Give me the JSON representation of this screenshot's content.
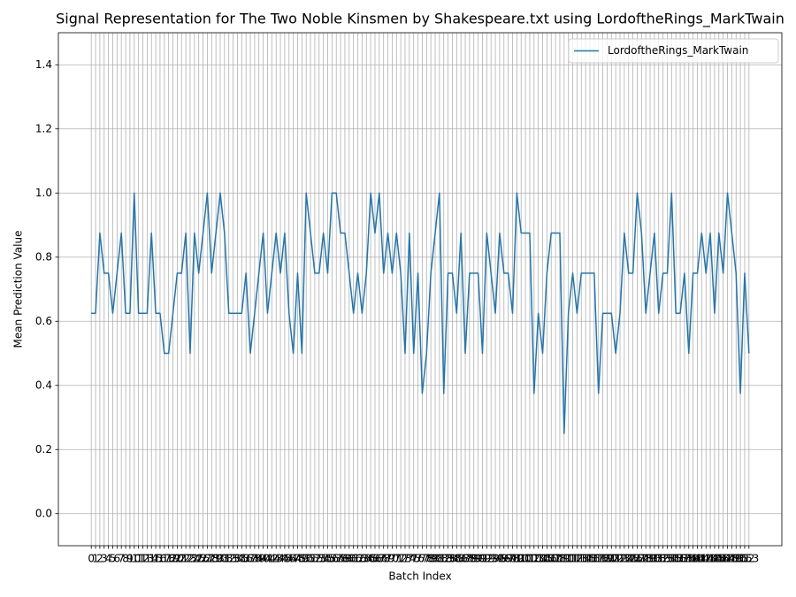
{
  "chart_data": {
    "type": "line",
    "title": "Signal Representation for The Two Noble Kinsmen by Shakespeare.txt using LordoftheRings_MarkTwain",
    "x_label": "Batch Index",
    "y_label": "Mean Prediction Value",
    "x": [
      0,
      1,
      2,
      3,
      4,
      5,
      6,
      7,
      8,
      9,
      10,
      11,
      12,
      13,
      14,
      15,
      16,
      17,
      18,
      19,
      20,
      21,
      22,
      23,
      24,
      25,
      26,
      27,
      28,
      29,
      30,
      31,
      32,
      33,
      34,
      35,
      36,
      37,
      38,
      39,
      40,
      41,
      42,
      43,
      44,
      45,
      46,
      47,
      48,
      49,
      50,
      51,
      52,
      53,
      54,
      55,
      56,
      57,
      58,
      59,
      60,
      61,
      62,
      63,
      64,
      65,
      66,
      67,
      68,
      69,
      70,
      71,
      72,
      73,
      74,
      75,
      76,
      77,
      78,
      79,
      80,
      81,
      82,
      83,
      84,
      85,
      86,
      87,
      88,
      89,
      90,
      91,
      92,
      93,
      94,
      95,
      96,
      97,
      98,
      99,
      100,
      101,
      102,
      103,
      104,
      105,
      106,
      107,
      108,
      109,
      110,
      111,
      112,
      113,
      114,
      115,
      116,
      117,
      118,
      119,
      120,
      121,
      122,
      123,
      124,
      125,
      126,
      127,
      128,
      129,
      130,
      131,
      132,
      133,
      134,
      135,
      136,
      137,
      138,
      139,
      140,
      141,
      142,
      143,
      144,
      145,
      146,
      147,
      148,
      149,
      150,
      151,
      152,
      153
    ],
    "series": [
      {
        "name": "LordoftheRings_MarkTwain",
        "color": "#1f77b4",
        "values": [
          0.625,
          0.625,
          0.875,
          0.75,
          0.75,
          0.625,
          0.75,
          0.875,
          0.625,
          0.625,
          1.0,
          0.625,
          0.625,
          0.625,
          0.875,
          0.625,
          0.625,
          0.5,
          0.5,
          0.625,
          0.75,
          0.75,
          0.875,
          0.5,
          0.875,
          0.75,
          0.875,
          1.0,
          0.75,
          0.875,
          1.0,
          0.875,
          0.625,
          0.625,
          0.625,
          0.625,
          0.75,
          0.5,
          0.625,
          0.75,
          0.875,
          0.625,
          0.75,
          0.875,
          0.75,
          0.875,
          0.625,
          0.5,
          0.75,
          0.5,
          1.0,
          0.875,
          0.75,
          0.75,
          0.875,
          0.75,
          1.0,
          1.0,
          0.875,
          0.875,
          0.75,
          0.625,
          0.75,
          0.625,
          0.75,
          1.0,
          0.875,
          1.0,
          0.75,
          0.875,
          0.75,
          0.875,
          0.75,
          0.5,
          0.875,
          0.5,
          0.75,
          0.375,
          0.5,
          0.75,
          0.875,
          1.0,
          0.375,
          0.75,
          0.75,
          0.625,
          0.875,
          0.5,
          0.75,
          0.75,
          0.75,
          0.5,
          0.875,
          0.75,
          0.625,
          0.875,
          0.75,
          0.75,
          0.625,
          1.0,
          0.875,
          0.875,
          0.875,
          0.375,
          0.625,
          0.5,
          0.75,
          0.875,
          0.875,
          0.875,
          0.25,
          0.625,
          0.75,
          0.625,
          0.75,
          0.75,
          0.75,
          0.75,
          0.375,
          0.625,
          0.625,
          0.625,
          0.5,
          0.625,
          0.875,
          0.75,
          0.75,
          1.0,
          0.875,
          0.625,
          0.75,
          0.875,
          0.625,
          0.75,
          0.75,
          1.0,
          0.625,
          0.625,
          0.75,
          0.5,
          0.75,
          0.75,
          0.875,
          0.75,
          0.875,
          0.625,
          0.875,
          0.75,
          1.0,
          0.875,
          0.75,
          0.375,
          0.75,
          0.5
        ]
      }
    ],
    "xlim": [
      -7.65,
      160.65
    ],
    "xticks": [
      0,
      1,
      2,
      3,
      4,
      5,
      6,
      7,
      8,
      9,
      10,
      11,
      12,
      13,
      14,
      15,
      16,
      17,
      18,
      19,
      20,
      21,
      22,
      23,
      24,
      25,
      26,
      27,
      28,
      29,
      30,
      31,
      32,
      33,
      34,
      35,
      36,
      37,
      38,
      39,
      40,
      41,
      42,
      43,
      44,
      45,
      46,
      47,
      48,
      49,
      50,
      51,
      52,
      53,
      54,
      55,
      56,
      57,
      58,
      59,
      60,
      61,
      62,
      63,
      64,
      65,
      66,
      67,
      68,
      69,
      70,
      71,
      72,
      73,
      74,
      75,
      76,
      77,
      78,
      79,
      80,
      81,
      82,
      83,
      84,
      85,
      86,
      87,
      88,
      89,
      90,
      91,
      92,
      93,
      94,
      95,
      96,
      97,
      98,
      99,
      100,
      101,
      102,
      103,
      104,
      105,
      106,
      107,
      108,
      109,
      110,
      111,
      112,
      113,
      114,
      115,
      116,
      117,
      118,
      119,
      120,
      121,
      122,
      123,
      124,
      125,
      126,
      127,
      128,
      129,
      130,
      131,
      132,
      133,
      134,
      135,
      136,
      137,
      138,
      139,
      140,
      141,
      142,
      143,
      144,
      145,
      146,
      147,
      148,
      149,
      150,
      151,
      152,
      153
    ],
    "ylim": [
      -0.1,
      1.5
    ],
    "yticks": [
      {
        "value": 0,
        "label": "0.0"
      },
      0.2,
      0.4,
      0.6,
      0.8,
      {
        "value": 1,
        "label": "1.0"
      },
      1.2,
      1.4
    ],
    "grid": true,
    "legend": "upper right"
  }
}
